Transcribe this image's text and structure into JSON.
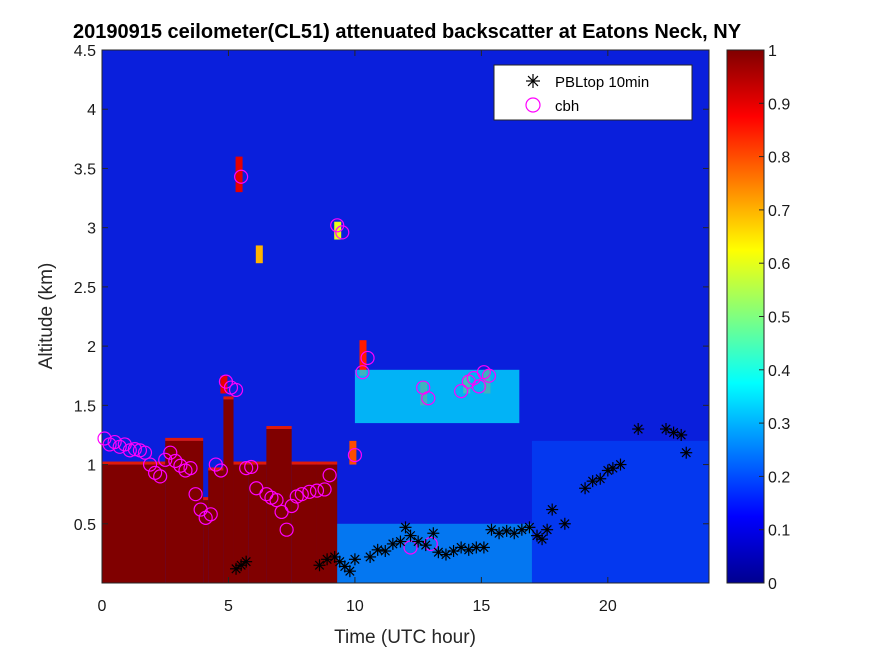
{
  "chart_data": {
    "type": "heatmap",
    "title": "20190915 ceilometer(CL51) attenuated backscatter at Eatons Neck, NY",
    "xlabel": "Time (UTC hour)",
    "ylabel": "Altitude (km)",
    "xlim": [
      0,
      24
    ],
    "ylim": [
      0,
      4.5
    ],
    "xticks": [
      "0",
      "5",
      "10",
      "15",
      "20"
    ],
    "yticks": [
      "0.5",
      "1",
      "1.5",
      "2",
      "2.5",
      "3",
      "3.5",
      "4",
      "4.5"
    ],
    "colorbar": {
      "colormap": "jet",
      "range": [
        0,
        1
      ],
      "ticks": [
        "0",
        "0.1",
        "0.2",
        "0.3",
        "0.4",
        "0.5",
        "0.6",
        "0.7",
        "0.8",
        "0.9",
        "1"
      ]
    },
    "legend": {
      "location": "top-right",
      "entries": [
        {
          "label": "PBLtop 10min",
          "marker": "asterisk",
          "color": "#000000"
        },
        {
          "label": "cbh",
          "marker": "circle",
          "color": "#ff00ff"
        }
      ]
    },
    "series": [
      {
        "name": "PBLtop 10min",
        "x": [
          5.3,
          5.5,
          5.7,
          8.6,
          8.9,
          9.2,
          9.4,
          9.6,
          9.8,
          10.0,
          10.6,
          10.9,
          11.2,
          11.5,
          11.8,
          12.0,
          12.2,
          12.5,
          12.8,
          13.1,
          13.3,
          13.6,
          13.9,
          14.2,
          14.5,
          14.8,
          15.1,
          15.4,
          15.7,
          16.0,
          16.3,
          16.6,
          16.9,
          17.2,
          17.4,
          17.6,
          17.8,
          18.3,
          19.1,
          19.4,
          19.7,
          20.0,
          20.2,
          20.5,
          21.2,
          22.3,
          22.6,
          22.9,
          23.1
        ],
        "y": [
          0.12,
          0.15,
          0.18,
          0.15,
          0.2,
          0.22,
          0.18,
          0.14,
          0.1,
          0.2,
          0.22,
          0.28,
          0.27,
          0.33,
          0.35,
          0.47,
          0.4,
          0.35,
          0.32,
          0.42,
          0.26,
          0.24,
          0.27,
          0.3,
          0.28,
          0.3,
          0.3,
          0.45,
          0.42,
          0.44,
          0.42,
          0.45,
          0.47,
          0.4,
          0.37,
          0.45,
          0.62,
          0.5,
          0.8,
          0.86,
          0.88,
          0.95,
          0.97,
          1.0,
          1.3,
          1.3,
          1.27,
          1.25,
          1.1
        ]
      },
      {
        "name": "cbh",
        "x": [
          0.1,
          0.3,
          0.5,
          0.7,
          0.9,
          1.1,
          1.3,
          1.5,
          1.7,
          1.9,
          2.1,
          2.3,
          2.5,
          2.7,
          2.9,
          3.1,
          3.3,
          3.5,
          3.7,
          3.9,
          4.1,
          4.3,
          4.5,
          4.7,
          4.9,
          5.1,
          5.3,
          5.5,
          5.7,
          5.9,
          6.1,
          6.5,
          6.7,
          6.9,
          7.1,
          7.3,
          7.5,
          7.7,
          7.9,
          8.2,
          8.5,
          8.8,
          9.0,
          9.3,
          9.5,
          10.0,
          10.3,
          10.5,
          12.2,
          12.7,
          12.9,
          13.0,
          14.2,
          14.5,
          14.7,
          14.9,
          15.1,
          15.3
        ],
        "y": [
          1.22,
          1.17,
          1.19,
          1.15,
          1.17,
          1.12,
          1.13,
          1.12,
          1.1,
          1.0,
          0.93,
          0.9,
          1.04,
          1.1,
          1.03,
          0.99,
          0.95,
          0.97,
          0.75,
          0.62,
          0.55,
          0.58,
          1.0,
          0.95,
          1.7,
          1.65,
          1.63,
          3.43,
          0.97,
          0.98,
          0.8,
          0.75,
          0.72,
          0.7,
          0.6,
          0.45,
          0.65,
          0.73,
          0.75,
          0.77,
          0.78,
          0.79,
          0.91,
          3.02,
          2.96,
          1.08,
          1.78,
          1.9,
          0.3,
          1.65,
          1.56,
          0.33,
          1.62,
          1.7,
          1.73,
          1.66,
          1.78,
          1.75
        ]
      }
    ],
    "grid": false
  }
}
